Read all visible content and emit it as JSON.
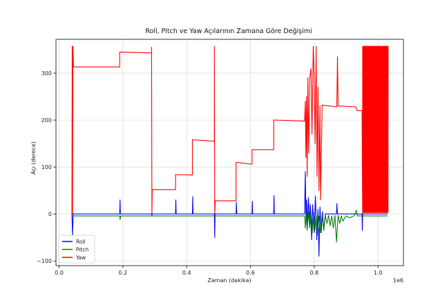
{
  "chart_data": {
    "type": "line",
    "title": "Roll, Pitch ve Yaw Açılarının Zamana Göre Değişimi",
    "xlabel": "Zaman (dakika)",
    "ylabel": "Açı (derece)",
    "x_offset_label": "1e6",
    "xlim": [
      -0.01,
      1.08
    ],
    "ylim": [
      -110,
      372
    ],
    "x_ticks": [
      0.0,
      0.2,
      0.4,
      0.6,
      0.8,
      1.0
    ],
    "x_tick_labels": [
      "0.0",
      "0.2",
      "0.4",
      "0.6",
      "0.8",
      "1.0"
    ],
    "y_ticks": [
      -100,
      0,
      100,
      200,
      300
    ],
    "y_tick_labels": [
      "−100",
      "0",
      "100",
      "200",
      "300"
    ],
    "grid": true,
    "legend_position": "bottom-left",
    "series": [
      {
        "name": "Roll",
        "color": "#0000ff",
        "points": [
          [
            0.04,
            0
          ],
          [
            0.042,
            -45
          ],
          [
            0.044,
            0
          ],
          [
            0.19,
            0
          ],
          [
            0.191,
            30
          ],
          [
            0.192,
            0
          ],
          [
            0.29,
            0
          ],
          [
            0.291,
            -3
          ],
          [
            0.292,
            0
          ],
          [
            0.365,
            0
          ],
          [
            0.366,
            30
          ],
          [
            0.367,
            0
          ],
          [
            0.418,
            0
          ],
          [
            0.419,
            37
          ],
          [
            0.42,
            0
          ],
          [
            0.487,
            0
          ],
          [
            0.488,
            -50
          ],
          [
            0.489,
            0
          ],
          [
            0.555,
            0
          ],
          [
            0.556,
            25
          ],
          [
            0.557,
            0
          ],
          [
            0.605,
            0
          ],
          [
            0.606,
            27
          ],
          [
            0.607,
            0
          ],
          [
            0.673,
            0
          ],
          [
            0.674,
            39
          ],
          [
            0.675,
            0
          ],
          [
            0.77,
            0
          ],
          [
            0.771,
            50
          ],
          [
            0.772,
            90
          ],
          [
            0.774,
            -10
          ],
          [
            0.776,
            30
          ],
          [
            0.778,
            -25
          ],
          [
            0.782,
            35
          ],
          [
            0.785,
            -20
          ],
          [
            0.788,
            20
          ],
          [
            0.792,
            -55
          ],
          [
            0.795,
            20
          ],
          [
            0.8,
            -40
          ],
          [
            0.804,
            38
          ],
          [
            0.808,
            -55
          ],
          [
            0.812,
            10
          ],
          [
            0.815,
            -90
          ],
          [
            0.818,
            15
          ],
          [
            0.822,
            -40
          ],
          [
            0.826,
            5
          ],
          [
            0.83,
            -35
          ],
          [
            0.835,
            0
          ],
          [
            0.87,
            0
          ],
          [
            0.871,
            22
          ],
          [
            0.873,
            0
          ],
          [
            0.94,
            0
          ],
          [
            0.95,
            0
          ],
          [
            0.951,
            -35
          ],
          [
            0.952,
            0
          ],
          [
            1.03,
            0
          ]
        ]
      },
      {
        "name": "Pitch",
        "color": "#008000",
        "points": [
          [
            0.045,
            -4
          ],
          [
            0.19,
            -4
          ],
          [
            0.191,
            -12
          ],
          [
            0.193,
            -4
          ],
          [
            0.49,
            -4
          ],
          [
            0.77,
            -4
          ],
          [
            0.772,
            -30
          ],
          [
            0.775,
            0
          ],
          [
            0.778,
            -35
          ],
          [
            0.782,
            5
          ],
          [
            0.786,
            -30
          ],
          [
            0.79,
            0
          ],
          [
            0.794,
            -40
          ],
          [
            0.798,
            3
          ],
          [
            0.802,
            -35
          ],
          [
            0.806,
            0
          ],
          [
            0.81,
            -45
          ],
          [
            0.815,
            -5
          ],
          [
            0.82,
            -40
          ],
          [
            0.825,
            0
          ],
          [
            0.83,
            -35
          ],
          [
            0.835,
            -3
          ],
          [
            0.84,
            -20
          ],
          [
            0.845,
            -3
          ],
          [
            0.85,
            -25
          ],
          [
            0.855,
            -4
          ],
          [
            0.86,
            -30
          ],
          [
            0.865,
            -3
          ],
          [
            0.87,
            -60
          ],
          [
            0.875,
            -3
          ],
          [
            0.88,
            -20
          ],
          [
            0.885,
            -4
          ],
          [
            0.89,
            -15
          ],
          [
            0.9,
            -4
          ],
          [
            0.91,
            -8
          ],
          [
            0.925,
            -4
          ],
          [
            0.932,
            8
          ],
          [
            0.935,
            -4
          ],
          [
            1.03,
            -4
          ]
        ]
      },
      {
        "name": "Yaw",
        "color": "#ff0000",
        "points": [
          [
            0.04,
            0
          ],
          [
            0.041,
            357
          ],
          [
            0.042,
            0
          ],
          [
            0.043,
            357
          ],
          [
            0.045,
            313
          ],
          [
            0.19,
            313
          ],
          [
            0.19,
            345
          ],
          [
            0.29,
            343
          ],
          [
            0.29,
            355
          ],
          [
            0.291,
            0
          ],
          [
            0.292,
            52
          ],
          [
            0.365,
            52
          ],
          [
            0.365,
            84
          ],
          [
            0.418,
            83
          ],
          [
            0.418,
            158
          ],
          [
            0.487,
            155
          ],
          [
            0.487,
            357
          ],
          [
            0.488,
            0
          ],
          [
            0.49,
            28
          ],
          [
            0.555,
            28
          ],
          [
            0.555,
            110
          ],
          [
            0.605,
            106
          ],
          [
            0.605,
            137
          ],
          [
            0.673,
            137
          ],
          [
            0.673,
            200
          ],
          [
            0.77,
            198
          ],
          [
            0.772,
            240
          ],
          [
            0.774,
            120
          ],
          [
            0.776,
            250
          ],
          [
            0.778,
            80
          ],
          [
            0.78,
            290
          ],
          [
            0.783,
            130
          ],
          [
            0.786,
            290
          ],
          [
            0.79,
            310
          ],
          [
            0.793,
            170
          ],
          [
            0.797,
            357
          ],
          [
            0.8,
            290
          ],
          [
            0.803,
            150
          ],
          [
            0.806,
            357
          ],
          [
            0.809,
            80
          ],
          [
            0.812,
            270
          ],
          [
            0.815,
            50
          ],
          [
            0.818,
            230
          ],
          [
            0.82,
            30
          ],
          [
            0.825,
            232
          ],
          [
            0.87,
            228
          ],
          [
            0.871,
            240
          ],
          [
            0.873,
            335
          ],
          [
            0.875,
            230
          ],
          [
            0.93,
            228
          ],
          [
            0.935,
            220
          ],
          [
            0.95,
            220
          ],
          [
            0.952,
            0
          ]
        ],
        "oscillation": {
          "x_start": 0.952,
          "x_end": 1.032,
          "y_low": 0,
          "y_high": 357,
          "cycles": 140
        }
      }
    ]
  }
}
